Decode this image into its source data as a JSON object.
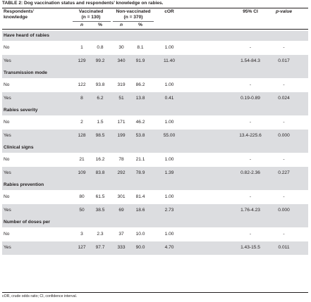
{
  "table": {
    "title": "TABLE 2: Dog vaccination status and respondents’ knowledge on rabies.",
    "headers": {
      "knowledge_line1": "Respondents’",
      "knowledge_line2": "knowledge",
      "vacc_line1": "Vaccinated",
      "vacc_line2": "(n = 130)",
      "nonvacc_line1": "Non-vaccinated",
      "nonvacc_line2": "(n = 370)",
      "cor": "cOR",
      "ci": "95% CI",
      "pvalue": "p-value",
      "n": "n",
      "pct": "%"
    },
    "sections": [
      {
        "title": "Have heard of rabies",
        "rows": [
          {
            "label": "No",
            "vn": "1",
            "vp": "0.8",
            "nn": "30",
            "np": "8.1",
            "cor": "1.00",
            "ci": "-",
            "p": "-"
          },
          {
            "label": "Yes",
            "vn": "129",
            "vp": "99.2",
            "nn": "340",
            "np": "91.9",
            "cor": "11.40",
            "ci": "1.54-84.3",
            "p": "0.017"
          }
        ]
      },
      {
        "title": "Transmission mode",
        "rows": [
          {
            "label": "No",
            "vn": "122",
            "vp": "93.8",
            "nn": "319",
            "np": "86.2",
            "cor": "1.00",
            "ci": "-",
            "p": "-"
          },
          {
            "label": "Yes",
            "vn": "8",
            "vp": "6.2",
            "nn": "51",
            "np": "13.8",
            "cor": "0.41",
            "ci": "0.19-0.89",
            "p": "0.024"
          }
        ]
      },
      {
        "title": "Rabies severity",
        "rows": [
          {
            "label": "No",
            "vn": "2",
            "vp": "1.5",
            "nn": "171",
            "np": "46.2",
            "cor": "1.00",
            "ci": "-",
            "p": "-"
          },
          {
            "label": "Yes",
            "vn": "128",
            "vp": "98.5",
            "nn": "199",
            "np": "53.8",
            "cor": "55.00",
            "ci": "13.4-225.6",
            "p": "0.000"
          }
        ]
      },
      {
        "title": "Clinical signs",
        "rows": [
          {
            "label": "No",
            "vn": "21",
            "vp": "16.2",
            "nn": "78",
            "np": "21.1",
            "cor": "1.00",
            "ci": "-",
            "p": "-"
          },
          {
            "label": "Yes",
            "vn": "109",
            "vp": "83.8",
            "nn": "292",
            "np": "78.9",
            "cor": "1.39",
            "ci": "0.82-2.36",
            "p": "0.227"
          }
        ]
      },
      {
        "title": "Rabies prevention",
        "rows": [
          {
            "label": "No",
            "vn": "80",
            "vp": "61.5",
            "nn": "301",
            "np": "81.4",
            "cor": "1.00",
            "ci": "-",
            "p": "-"
          },
          {
            "label": "Yes",
            "vn": "50",
            "vp": "38.5",
            "nn": "69",
            "np": "18.6",
            "cor": "2.73",
            "ci": "1.76-4.23",
            "p": "0.000"
          }
        ]
      },
      {
        "title": "Number of doses per",
        "rows": [
          {
            "label": "No",
            "vn": "3",
            "vp": "2.3",
            "nn": "37",
            "np": "10.0",
            "cor": "1.00",
            "ci": "-",
            "p": "-"
          },
          {
            "label": "Yes",
            "vn": "127",
            "vp": "97.7",
            "nn": "333",
            "np": "90.0",
            "cor": "4.70",
            "ci": "1.43-15.5",
            "p": "0.011"
          }
        ]
      }
    ],
    "footnote": "cOR, crude odds ratio; CI, confidence interval.",
    "colors": {
      "band": "#dcdde0",
      "text": "#231f20",
      "rule": "#6d6e71"
    }
  }
}
